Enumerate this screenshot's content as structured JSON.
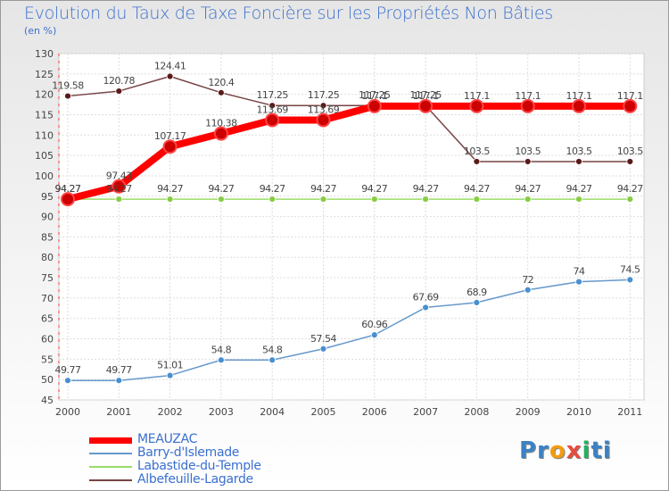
{
  "chart_data": {
    "type": "line",
    "title": "Evolution du Taux de Taxe Foncière sur les Propriétés Non Bâties",
    "ylabel": "(en %)",
    "xlabel": "",
    "ylim": [
      45,
      130
    ],
    "yticks": [
      45,
      50,
      55,
      60,
      65,
      70,
      75,
      80,
      85,
      90,
      95,
      100,
      105,
      110,
      115,
      120,
      125,
      130
    ],
    "categories": [
      "2000",
      "2001",
      "2002",
      "2003",
      "2004",
      "2005",
      "2006",
      "2007",
      "2008",
      "2009",
      "2010",
      "2011"
    ],
    "series": [
      {
        "name": "MEAUZAC",
        "color": "#ff0000",
        "marker": "#cc0000",
        "values": [
          94.27,
          97.43,
          107.17,
          110.38,
          113.69,
          113.69,
          117.1,
          117.1,
          117.1,
          117.1,
          117.1,
          117.1
        ],
        "labels": [
          "94.27",
          "97.43",
          "107.17",
          "110.38",
          "113.69",
          "113.69",
          "117.1",
          "117.1",
          "117.1",
          "117.1",
          "117.1",
          "117.1"
        ]
      },
      {
        "name": "Barry-d'Islemade",
        "color": "#6699cc",
        "marker": "#4a8fd0",
        "values": [
          49.77,
          49.77,
          51.01,
          54.8,
          54.8,
          57.54,
          60.96,
          67.69,
          68.9,
          72,
          74,
          74.5
        ],
        "labels": [
          "49.77",
          "49.77",
          "51.01",
          "54.8",
          "54.8",
          "57.54",
          "60.96",
          "67.69",
          "68.9",
          "72",
          "74",
          "74.5"
        ]
      },
      {
        "name": "Labastide-du-Temple",
        "color": "#99dd66",
        "marker": "#88cc44",
        "values": [
          94.27,
          94.27,
          94.27,
          94.27,
          94.27,
          94.27,
          94.27,
          94.27,
          94.27,
          94.27,
          94.27,
          94.27
        ],
        "labels": [
          "94.27",
          "94.27",
          "94.27",
          "94.27",
          "94.27",
          "94.27",
          "94.27",
          "94.27",
          "94.27",
          "94.27",
          "94.27",
          "94.27"
        ]
      },
      {
        "name": "Albefeuille-Lagarde",
        "color": "#774444",
        "marker": "#5a1a1a",
        "values": [
          119.58,
          120.78,
          124.41,
          120.4,
          117.25,
          117.25,
          117.25,
          117.25,
          103.5,
          103.5,
          103.5,
          103.5
        ],
        "labels": [
          "119.58",
          "120.78",
          "124.41",
          "120.4",
          "117.25",
          "117.25",
          "117.25",
          "117.25",
          "103.5",
          "103.5",
          "103.5",
          "103.5"
        ]
      }
    ],
    "legend_position": "bottom-left",
    "grid": true
  },
  "logo": {
    "text": "Proxiti"
  }
}
